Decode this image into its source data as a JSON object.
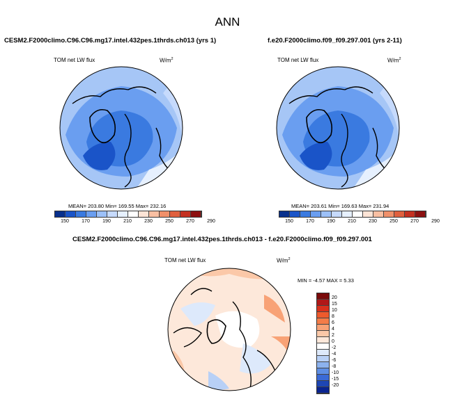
{
  "title": "ANN",
  "panels": [
    {
      "case_name": "CESM2.F2000climo.C96.C96.mg17.intel.432pes.1thrds.ch013 (yrs 1)",
      "variable": "TOM net LW flux",
      "units": "W/m",
      "units_sup": "2",
      "stats": "MEAN= 203.80   Min= 169.55   Max= 232.16"
    },
    {
      "case_name": "f.e20.F2000climo.f09_f09.297.001 (yrs 2-11)",
      "variable": "TOM net LW flux",
      "units": "W/m",
      "units_sup": "2",
      "stats": "MEAN= 203.61   Min= 169.63   Max= 231.94"
    }
  ],
  "diff_panel": {
    "title": "CESM2.F2000climo.C96.C96.mg17.intel.432pes.1thrds.ch013 - f.e20.F2000climo.f09_f09.297.001",
    "variable": "TOM net LW flux",
    "units": "W/m",
    "units_sup": "2",
    "stats": "MIN =  -4.57  MAX =   5.33"
  },
  "colorbar_main": {
    "ticks": [
      "150",
      "170",
      "190",
      "210",
      "230",
      "250",
      "270",
      "290"
    ],
    "colors": [
      "#08308c",
      "#1a54c8",
      "#3a7ae0",
      "#6a9ef0",
      "#9cc0f8",
      "#c6dafc",
      "#e6f0fe",
      "#ffffff",
      "#fde4d6",
      "#f9bfa2",
      "#f0906a",
      "#e0603e",
      "#c43020",
      "#8c1010"
    ]
  },
  "colorbar_diff": {
    "ticks": [
      "20",
      "15",
      "10",
      "8",
      "6",
      "4",
      "2",
      "0",
      "-2",
      "-4",
      "-6",
      "-8",
      "-10",
      "-15",
      "-20"
    ],
    "colors": [
      "#7a0a0a",
      "#b01818",
      "#d8301c",
      "#ee5a2c",
      "#f47c48",
      "#f8a276",
      "#fbc8a8",
      "#fde8da",
      "#ffffff",
      "#dde9fb",
      "#b8d0f6",
      "#8cb2ee",
      "#5e8ee4",
      "#3a6ad6",
      "#1e46b4",
      "#0a2490"
    ]
  }
}
